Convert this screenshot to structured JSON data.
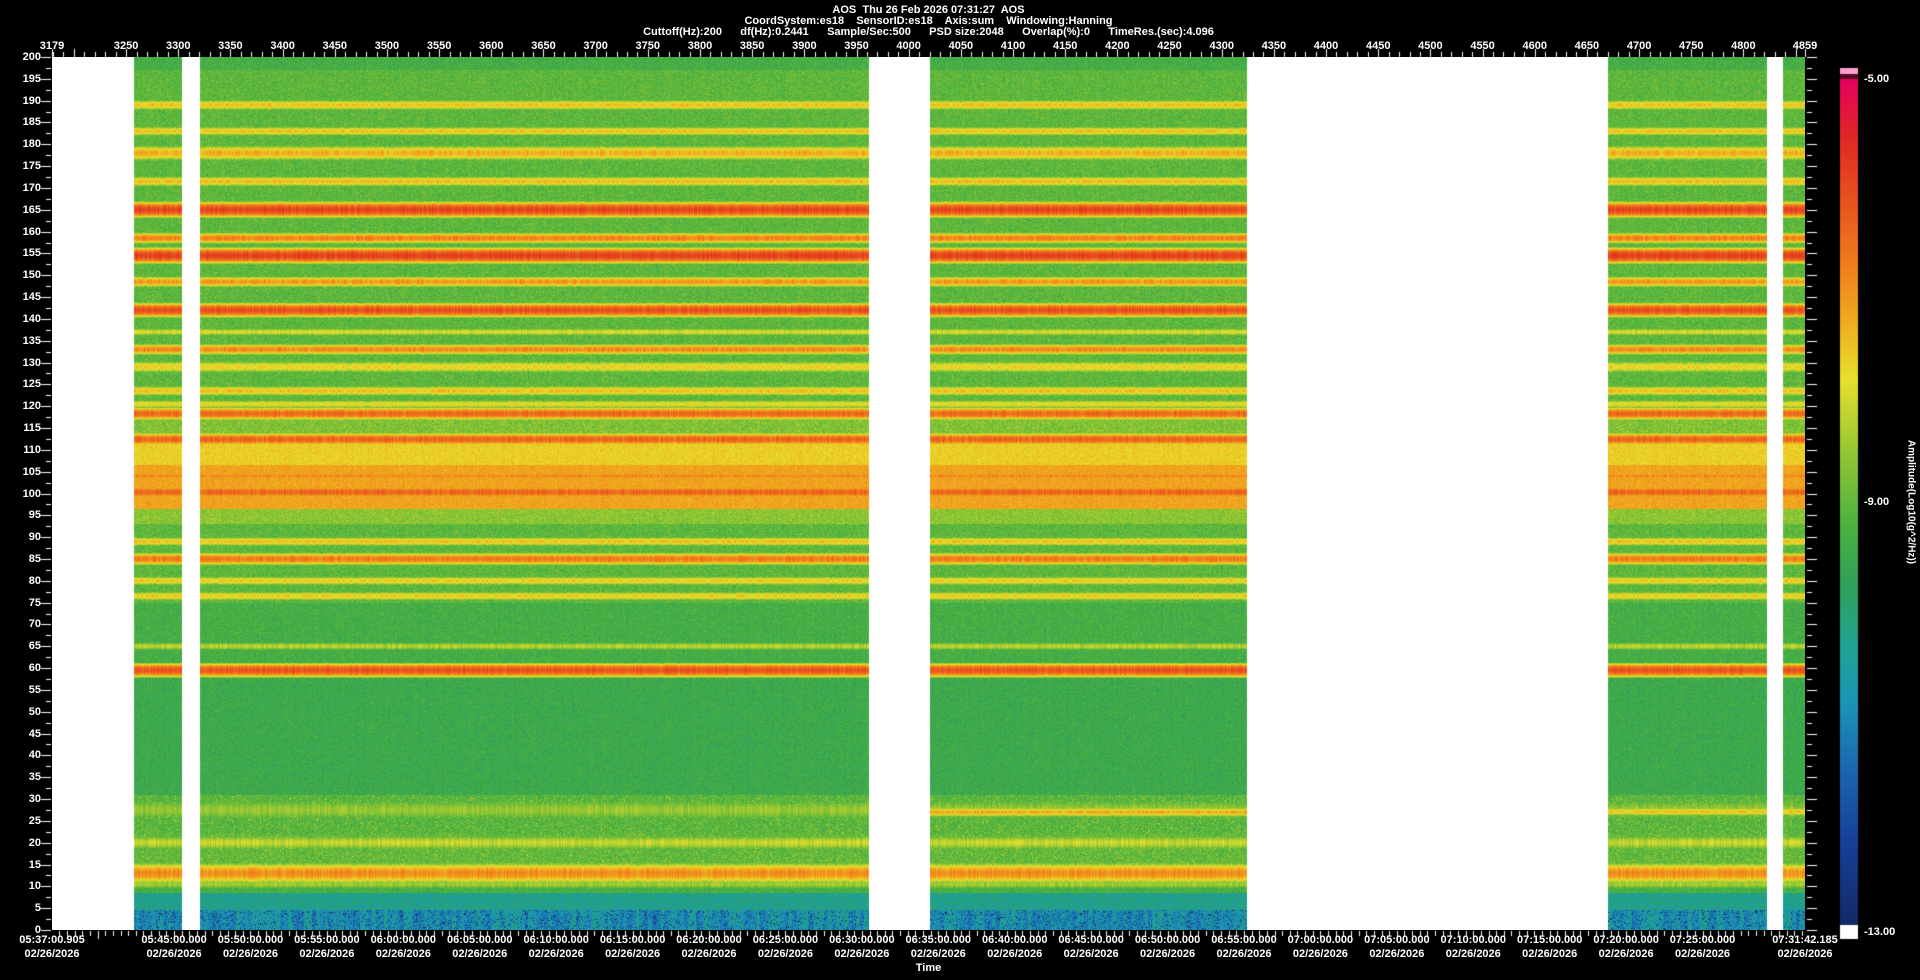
{
  "header": {
    "line1": "AOS  Thu 26 Feb 2026 07:31:27  AOS",
    "line2": "CoordSystem:es18    SensorID:es18    Axis:sum    Windowing:Hanning",
    "line3": "Cuttoff(Hz):200      df(Hz):0.2441      Sample/Sec:500      PSD size:2048      Overlap(%):0      TimeRes.(sec):4.096"
  },
  "chart_data": {
    "type": "heatmap",
    "title": "AOS  Thu 26 Feb 2026 07:31:27  AOS",
    "params": {
      "CoordSystem": "es18",
      "SensorID": "es18",
      "Axis": "sum",
      "Windowing": "Hanning",
      "Cuttoff(Hz)": "200",
      "df(Hz)": "0.2441",
      "Sample/Sec": "500",
      "PSD size": "2048",
      "Overlap(%)": "0",
      "TimeRes.(sec)": "4.096"
    },
    "record_axis": {
      "min": 3179,
      "max": 4859,
      "minor_step": 10,
      "ticks": [
        3179,
        3250,
        3300,
        3350,
        3400,
        3450,
        3500,
        3550,
        3600,
        3650,
        3700,
        3750,
        3800,
        3850,
        3900,
        3950,
        4000,
        4050,
        4100,
        4150,
        4200,
        4250,
        4300,
        4350,
        4400,
        4450,
        4500,
        4550,
        4600,
        4650,
        4700,
        4750,
        4800,
        4859
      ]
    },
    "freq_axis": {
      "min": 0,
      "max": 200,
      "label_step": 5,
      "minor_step": 2.5,
      "unit": "Hz"
    },
    "time_axis": {
      "label": "Time",
      "labels": [
        {
          "time": "05:37:00.905",
          "date": "02/26/2026"
        },
        {
          "time": "05:45:00.000",
          "date": "02/26/2026"
        },
        {
          "time": "05:50:00.000",
          "date": "02/26/2026"
        },
        {
          "time": "05:55:00.000",
          "date": "02/26/2026"
        },
        {
          "time": "06:00:00.000",
          "date": "02/26/2026"
        },
        {
          "time": "06:05:00.000",
          "date": "02/26/2026"
        },
        {
          "time": "06:10:00.000",
          "date": "02/26/2026"
        },
        {
          "time": "06:15:00.000",
          "date": "02/26/2026"
        },
        {
          "time": "06:20:00.000",
          "date": "02/26/2026"
        },
        {
          "time": "06:25:00.000",
          "date": "02/26/2026"
        },
        {
          "time": "06:30:00.000",
          "date": "02/26/2026"
        },
        {
          "time": "06:35:00.000",
          "date": "02/26/2026"
        },
        {
          "time": "06:40:00.000",
          "date": "02/26/2026"
        },
        {
          "time": "06:45:00.000",
          "date": "02/26/2026"
        },
        {
          "time": "06:50:00.000",
          "date": "02/26/2026"
        },
        {
          "time": "06:55:00.000",
          "date": "02/26/2026"
        },
        {
          "time": "07:00:00.000",
          "date": "02/26/2026"
        },
        {
          "time": "07:05:00.000",
          "date": "02/26/2026"
        },
        {
          "time": "07:10:00.000",
          "date": "02/26/2026"
        },
        {
          "time": "07:15:00.000",
          "date": "02/26/2026"
        },
        {
          "time": "07:20:00.000",
          "date": "02/26/2026"
        },
        {
          "time": "07:25:00.000",
          "date": "02/26/2026"
        },
        {
          "time": "07:31:42.185",
          "date": "02/26/2026"
        }
      ]
    },
    "colorbar": {
      "label": "Amplitude(Log10(g^2/Hz))",
      "max": -5,
      "mid": -9,
      "min": -13,
      "max_label": "-5.00",
      "mid_label": "-9.00",
      "min_label": "-13.00",
      "stops": [
        [
          0.0,
          "#122a66"
        ],
        [
          0.1,
          "#16409a"
        ],
        [
          0.18,
          "#1c64b0"
        ],
        [
          0.26,
          "#1a93b6"
        ],
        [
          0.33,
          "#20a394"
        ],
        [
          0.4,
          "#2fa05a"
        ],
        [
          0.47,
          "#4ab140"
        ],
        [
          0.55,
          "#8cc434"
        ],
        [
          0.645,
          "#e8e02c"
        ],
        [
          0.72,
          "#f0a61e"
        ],
        [
          0.78,
          "#f07d1c"
        ],
        [
          0.85,
          "#e8551e"
        ],
        [
          0.93,
          "#e02824"
        ],
        [
          1.0,
          "#e6005f"
        ]
      ]
    },
    "no_data_gaps_records": [
      [
        3179,
        3258
      ],
      [
        3304,
        3321
      ],
      [
        3962,
        4020
      ],
      [
        4324,
        4670
      ],
      [
        4823,
        4838
      ]
    ],
    "background": {
      "level": -9.05,
      "noise": 0.5
    },
    "zones": [
      {
        "f0": 197,
        "f1": 200.1,
        "level": -9.35,
        "noise": 0.45
      },
      {
        "f0": 113,
        "f1": 117.6,
        "level": -8.75,
        "noise": 0.5,
        "spark": 0.5
      },
      {
        "f0": 106.5,
        "f1": 113,
        "level": -7.65,
        "noise": 0.35
      },
      {
        "f0": 96.5,
        "f1": 106.5,
        "level": -7.2,
        "noise": 0.3
      },
      {
        "f0": 93,
        "f1": 96.5,
        "level": -8.6,
        "noise": 0.45
      },
      {
        "f0": 59,
        "f1": 75,
        "level": -9.35,
        "noise": 0.45
      },
      {
        "f0": 31,
        "f1": 59,
        "level": -9.5,
        "noise": 0.45
      },
      {
        "f0": 22,
        "f1": 31,
        "level": -9.15,
        "noise": 0.5,
        "spark": 0.9
      },
      {
        "f0": 15,
        "f1": 22,
        "level": -9.05,
        "noise": 0.5,
        "spark": 0.8
      },
      {
        "f0": 8.5,
        "f1": 15,
        "level": -9.3,
        "noise": 0.5
      },
      {
        "f0": 4.5,
        "f1": 8.5,
        "level": -10.3,
        "noise": 0.7
      },
      {
        "f0": 0,
        "f1": 4.5,
        "level": -10.9,
        "noise": 0.9,
        "specks": true
      }
    ],
    "bands": [
      {
        "f": 189,
        "hw": 0.9,
        "level": -7.5
      },
      {
        "f": 183,
        "hw": 0.8,
        "level": -7.5
      },
      {
        "f": 178,
        "hw": 1.3,
        "level": -7.3
      },
      {
        "f": 171.5,
        "hw": 0.9,
        "level": -7.45
      },
      {
        "f": 165,
        "hw": 1.2,
        "level": -5.95
      },
      {
        "f": 158.5,
        "hw": 0.9,
        "level": -6.8
      },
      {
        "f": 154.5,
        "hw": 1.2,
        "level": -5.9
      },
      {
        "f": 148.5,
        "hw": 0.9,
        "level": -7.05
      },
      {
        "f": 142,
        "hw": 1.1,
        "level": -6.1
      },
      {
        "f": 137,
        "hw": 0.7,
        "level": -7.9
      },
      {
        "f": 133,
        "hw": 0.9,
        "level": -6.9
      },
      {
        "f": 129,
        "hw": 1.1,
        "level": -7.7
      },
      {
        "f": 123.5,
        "hw": 0.9,
        "level": -7.5
      },
      {
        "f": 120.5,
        "hw": 0.7,
        "level": -7.7
      },
      {
        "f": 118.3,
        "hw": 1.0,
        "level": -6.45
      },
      {
        "f": 112.4,
        "hw": 1.0,
        "level": -6.4
      },
      {
        "f": 104,
        "hw": 0.7,
        "level": -6.9
      },
      {
        "f": 100.3,
        "hw": 1.0,
        "level": -6.4
      },
      {
        "f": 89,
        "hw": 0.8,
        "level": -7.5
      },
      {
        "f": 85,
        "hw": 1.0,
        "level": -6.7
      },
      {
        "f": 80,
        "hw": 0.8,
        "level": -7.6
      },
      {
        "f": 76.5,
        "hw": 0.8,
        "level": -7.6
      },
      {
        "f": 65,
        "hw": 0.8,
        "level": -8.2
      },
      {
        "f": 59.5,
        "hw": 1.1,
        "level": -6.15
      },
      {
        "f": 27,
        "hw": 0.8,
        "level": -7.3,
        "rec_range": [
          4020,
          4324
        ]
      },
      {
        "f": 27.1,
        "hw": 0.7,
        "level": -7.5,
        "rec_range": [
          4670,
          4859
        ]
      },
      {
        "f": 27.5,
        "hw": 2.2,
        "level": -8.5
      },
      {
        "f": 20,
        "hw": 1.4,
        "level": -8.1
      },
      {
        "f": 13,
        "hw": 1.7,
        "level": -6.95
      },
      {
        "f": 10.5,
        "hw": 1.0,
        "level": -8.4
      }
    ]
  },
  "colors": {
    "background": "#000000",
    "text": "#ffffff",
    "no_data": "#ffffff"
  }
}
